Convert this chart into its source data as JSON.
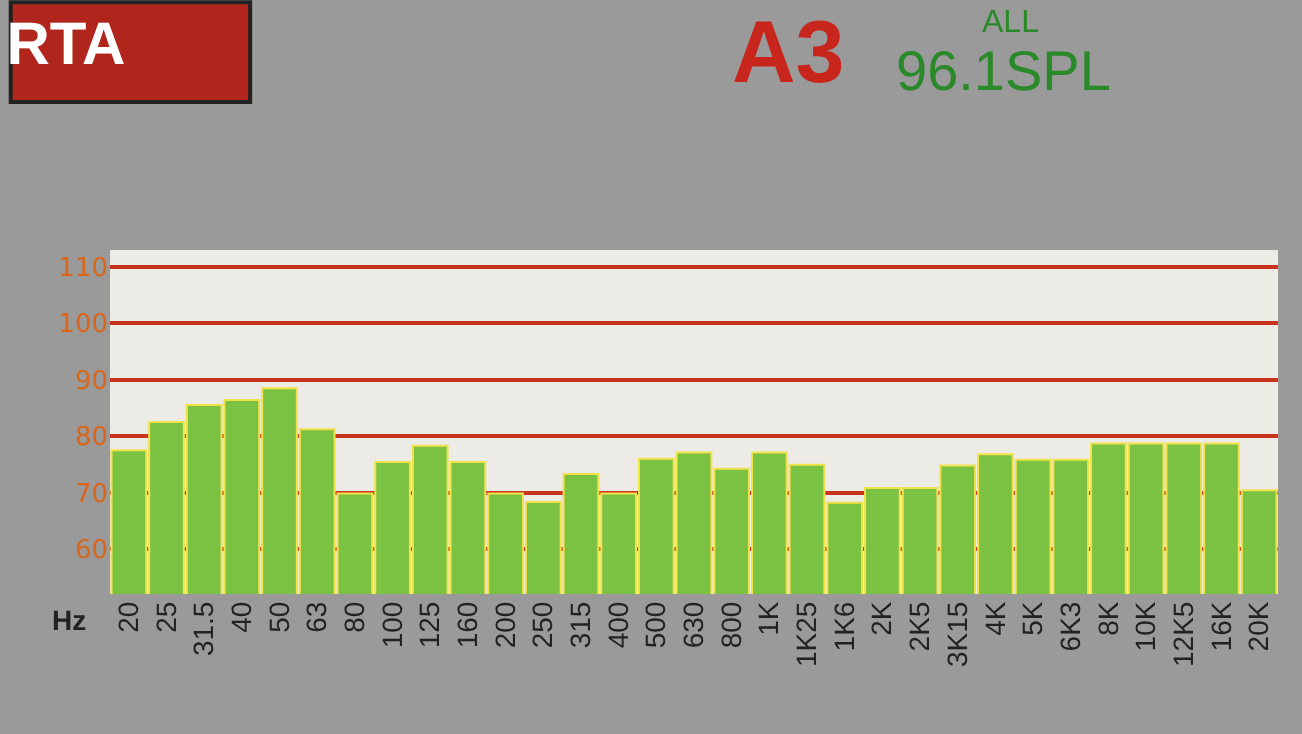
{
  "chart_data": {
    "type": "bar",
    "title": "RTA",
    "xlabel": "Hz",
    "annotations": [
      "A3",
      "ALL",
      "96.1SPL"
    ],
    "categories": [
      "20",
      "25",
      "31.5",
      "40",
      "50",
      "63",
      "80",
      "100",
      "125",
      "160",
      "200",
      "250",
      "315",
      "400",
      "500",
      "630",
      "800",
      "1K",
      "1K25",
      "1K6",
      "2K",
      "2K5",
      "3K15",
      "4K",
      "5K",
      "6K3",
      "8K",
      "10K",
      "12K5",
      "16K",
      "20K"
    ],
    "values": [
      77.5,
      82.5,
      85.5,
      86.4,
      88.5,
      81.2,
      69.8,
      75.4,
      78.3,
      75.4,
      69.8,
      68.3,
      73.3,
      69.8,
      76,
      77.1,
      74.2,
      77.1,
      74.9,
      68.2,
      70.8,
      70.8,
      74.8,
      76.8,
      75.8,
      75.8,
      78.7,
      78.7,
      78.7,
      78.7,
      70.4
    ],
    "color": "#7cc242",
    "ylim": [
      52,
      113
    ],
    "yticks": [
      60,
      70,
      80,
      90,
      100,
      110
    ],
    "grid": "y"
  }
}
